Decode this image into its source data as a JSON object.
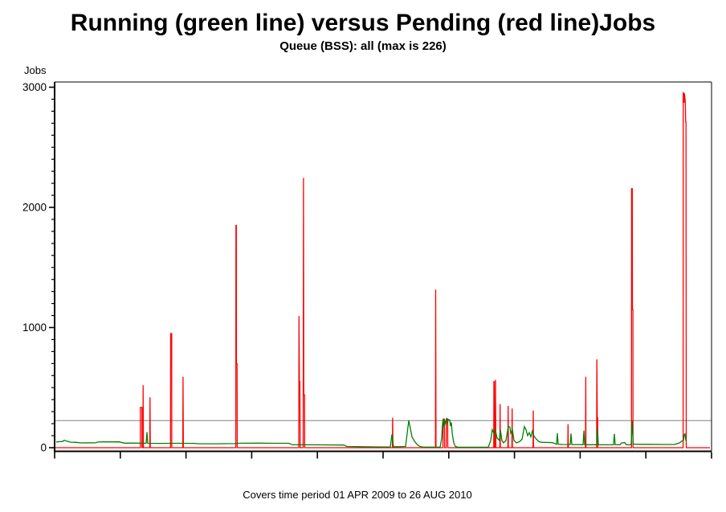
{
  "chart_data": {
    "type": "line",
    "title": "Running (green line) versus Pending (red line)Jobs",
    "subtitle": "Queue (BSS): all (max is 226)",
    "ylabel": "Jobs",
    "footnote": "Covers time period 01 APR 2009 to 26 AUG 2010",
    "x_unit": "fraction of time axis (0 = 01 APR 2009, 1 = 26 AUG 2010)",
    "y_axis": {
      "min": 0,
      "max": 3000,
      "major_step": 1000,
      "minor_step": 100,
      "tick_labels": [
        "0",
        "1000",
        "2000",
        "3000"
      ]
    },
    "x_axis": {
      "tick_count": 11,
      "labels": []
    },
    "reference_line": {
      "value": 226,
      "color": "#808080"
    },
    "frame_color": "#000000",
    "series": [
      {
        "name": "Pending",
        "color": "#ff0000",
        "points": [
          [
            0.0,
            0
          ],
          [
            0.1306,
            0
          ],
          [
            0.1306,
            335
          ],
          [
            0.133,
            335
          ],
          [
            0.133,
            0
          ],
          [
            0.1347,
            0
          ],
          [
            0.1347,
            520
          ],
          [
            0.1352,
            0
          ],
          [
            0.1449,
            0
          ],
          [
            0.1452,
            420
          ],
          [
            0.1456,
            0
          ],
          [
            0.1764,
            0
          ],
          [
            0.1766,
            950
          ],
          [
            0.1782,
            950
          ],
          [
            0.1784,
            0
          ],
          [
            0.1951,
            0
          ],
          [
            0.1955,
            590
          ],
          [
            0.196,
            0
          ],
          [
            0.2758,
            0
          ],
          [
            0.276,
            1850
          ],
          [
            0.2766,
            1850
          ],
          [
            0.2768,
            700
          ],
          [
            0.2778,
            700
          ],
          [
            0.278,
            0
          ],
          [
            0.3716,
            0
          ],
          [
            0.372,
            1095
          ],
          [
            0.3726,
            550
          ],
          [
            0.3734,
            550
          ],
          [
            0.3737,
            0
          ],
          [
            0.3784,
            0
          ],
          [
            0.3788,
            2245
          ],
          [
            0.3793,
            440
          ],
          [
            0.3804,
            440
          ],
          [
            0.3807,
            0
          ],
          [
            0.5142,
            0
          ],
          [
            0.5145,
            250
          ],
          [
            0.515,
            0
          ],
          [
            0.5797,
            0
          ],
          [
            0.5801,
            1315
          ],
          [
            0.5806,
            0
          ],
          [
            0.5911,
            0
          ],
          [
            0.5913,
            238
          ],
          [
            0.5933,
            238
          ],
          [
            0.5935,
            0
          ],
          [
            0.5961,
            0
          ],
          [
            0.5963,
            240
          ],
          [
            0.5983,
            240
          ],
          [
            0.5985,
            0
          ],
          [
            0.6684,
            0
          ],
          [
            0.6687,
            550
          ],
          [
            0.6693,
            550
          ],
          [
            0.6695,
            0
          ],
          [
            0.671,
            0
          ],
          [
            0.6712,
            565
          ],
          [
            0.6717,
            0
          ],
          [
            0.6777,
            0
          ],
          [
            0.6781,
            363
          ],
          [
            0.6785,
            0
          ],
          [
            0.69,
            0
          ],
          [
            0.6903,
            348
          ],
          [
            0.6907,
            0
          ],
          [
            0.6961,
            0
          ],
          [
            0.6964,
            326
          ],
          [
            0.6968,
            0
          ],
          [
            0.7282,
            0
          ],
          [
            0.7286,
            310
          ],
          [
            0.729,
            0
          ],
          [
            0.7812,
            0
          ],
          [
            0.7816,
            195
          ],
          [
            0.782,
            0
          ],
          [
            0.8081,
            0
          ],
          [
            0.8085,
            590
          ],
          [
            0.8088,
            0
          ],
          [
            0.8251,
            0
          ],
          [
            0.8254,
            735
          ],
          [
            0.8261,
            250
          ],
          [
            0.8267,
            250
          ],
          [
            0.8269,
            0
          ],
          [
            0.8781,
            0
          ],
          [
            0.8783,
            2155
          ],
          [
            0.8793,
            2155
          ],
          [
            0.8796,
            1150
          ],
          [
            0.8803,
            1150
          ],
          [
            0.8805,
            0
          ],
          [
            0.9567,
            0
          ],
          [
            0.9569,
            2960
          ],
          [
            0.9582,
            2870
          ],
          [
            0.9587,
            2950
          ],
          [
            0.96,
            2880
          ],
          [
            0.9606,
            2710
          ],
          [
            0.9611,
            2710
          ],
          [
            0.9615,
            0
          ],
          [
            0.9976,
            0
          ]
        ]
      },
      {
        "name": "Running",
        "color": "#008000",
        "points": [
          [
            0.0024,
            48
          ],
          [
            0.0073,
            50
          ],
          [
            0.0122,
            52
          ],
          [
            0.0147,
            62
          ],
          [
            0.0183,
            55
          ],
          [
            0.0244,
            46
          ],
          [
            0.033,
            45
          ],
          [
            0.0391,
            40
          ],
          [
            0.0538,
            41
          ],
          [
            0.0611,
            40
          ],
          [
            0.066,
            47
          ],
          [
            0.0733,
            49
          ],
          [
            0.088,
            48
          ],
          [
            0.0978,
            49
          ],
          [
            0.1064,
            38
          ],
          [
            0.1247,
            38
          ],
          [
            0.1394,
            37
          ],
          [
            0.1406,
            130
          ],
          [
            0.1418,
            37
          ],
          [
            0.1614,
            36
          ],
          [
            0.1858,
            37
          ],
          [
            0.2139,
            36
          ],
          [
            0.2188,
            33
          ],
          [
            0.2469,
            33
          ],
          [
            0.2738,
            34
          ],
          [
            0.2787,
            37
          ],
          [
            0.3081,
            38
          ],
          [
            0.3325,
            37
          ],
          [
            0.357,
            37
          ],
          [
            0.3619,
            24
          ],
          [
            0.3936,
            24
          ],
          [
            0.4242,
            23
          ],
          [
            0.4401,
            22
          ],
          [
            0.445,
            10
          ],
          [
            0.467,
            8
          ],
          [
            0.4914,
            7
          ],
          [
            0.511,
            6
          ],
          [
            0.5134,
            110
          ],
          [
            0.5159,
            8
          ],
          [
            0.5232,
            8
          ],
          [
            0.5342,
            10
          ],
          [
            0.5367,
            120
          ],
          [
            0.5391,
            226
          ],
          [
            0.5416,
            160
          ],
          [
            0.544,
            90
          ],
          [
            0.5477,
            55
          ],
          [
            0.5513,
            30
          ],
          [
            0.555,
            12
          ],
          [
            0.5599,
            6
          ],
          [
            0.577,
            5
          ],
          [
            0.5868,
            4
          ],
          [
            0.5892,
            80
          ],
          [
            0.5905,
            200
          ],
          [
            0.5917,
            238
          ],
          [
            0.5929,
            170
          ],
          [
            0.5954,
            225
          ],
          [
            0.5966,
            240
          ],
          [
            0.5978,
            200
          ],
          [
            0.599,
            235
          ],
          [
            0.6015,
            230
          ],
          [
            0.6027,
            180
          ],
          [
            0.6039,
            210
          ],
          [
            0.6052,
            120
          ],
          [
            0.6076,
            40
          ],
          [
            0.61,
            10
          ],
          [
            0.6137,
            5
          ],
          [
            0.6259,
            4
          ],
          [
            0.6504,
            4
          ],
          [
            0.6601,
            5
          ],
          [
            0.6638,
            60
          ],
          [
            0.6663,
            150
          ],
          [
            0.6687,
            120
          ],
          [
            0.6711,
            140
          ],
          [
            0.6736,
            80
          ],
          [
            0.6772,
            60
          ],
          [
            0.6785,
            150
          ],
          [
            0.6809,
            60
          ],
          [
            0.6834,
            40
          ],
          [
            0.687,
            60
          ],
          [
            0.6907,
            180
          ],
          [
            0.6931,
            170
          ],
          [
            0.6944,
            120
          ],
          [
            0.6968,
            150
          ],
          [
            0.6993,
            60
          ],
          [
            0.7029,
            40
          ],
          [
            0.7078,
            50
          ],
          [
            0.7115,
            70
          ],
          [
            0.7152,
            176
          ],
          [
            0.7176,
            150
          ],
          [
            0.72,
            100
          ],
          [
            0.7225,
            125
          ],
          [
            0.7249,
            90
          ],
          [
            0.7274,
            140
          ],
          [
            0.7298,
            95
          ],
          [
            0.7335,
            70
          ],
          [
            0.7372,
            50
          ],
          [
            0.7421,
            45
          ],
          [
            0.7482,
            44
          ],
          [
            0.7579,
            42
          ],
          [
            0.7641,
            28
          ],
          [
            0.7653,
            120
          ],
          [
            0.7665,
            28
          ],
          [
            0.7726,
            27
          ],
          [
            0.7848,
            26
          ],
          [
            0.7861,
            118
          ],
          [
            0.7873,
            26
          ],
          [
            0.7971,
            26
          ],
          [
            0.8044,
            25
          ],
          [
            0.8057,
            142
          ],
          [
            0.8069,
            25
          ],
          [
            0.8154,
            25
          ],
          [
            0.8252,
            25
          ],
          [
            0.8264,
            158
          ],
          [
            0.8276,
            25
          ],
          [
            0.8337,
            24
          ],
          [
            0.8399,
            24
          ],
          [
            0.8509,
            24
          ],
          [
            0.8521,
            115
          ],
          [
            0.8533,
            24
          ],
          [
            0.8606,
            24
          ],
          [
            0.8631,
            40
          ],
          [
            0.868,
            42
          ],
          [
            0.8704,
            24
          ],
          [
            0.8765,
            24
          ],
          [
            0.8777,
            30
          ],
          [
            0.879,
            226
          ],
          [
            0.8808,
            30
          ],
          [
            0.8887,
            28
          ],
          [
            0.9071,
            28
          ],
          [
            0.9254,
            27
          ],
          [
            0.9438,
            27
          ],
          [
            0.9511,
            40
          ],
          [
            0.9548,
            55
          ],
          [
            0.9572,
            60
          ],
          [
            0.9584,
            110
          ],
          [
            0.9597,
            115
          ],
          [
            0.9609,
            60
          ],
          [
            0.9621,
            55
          ]
        ]
      }
    ]
  }
}
